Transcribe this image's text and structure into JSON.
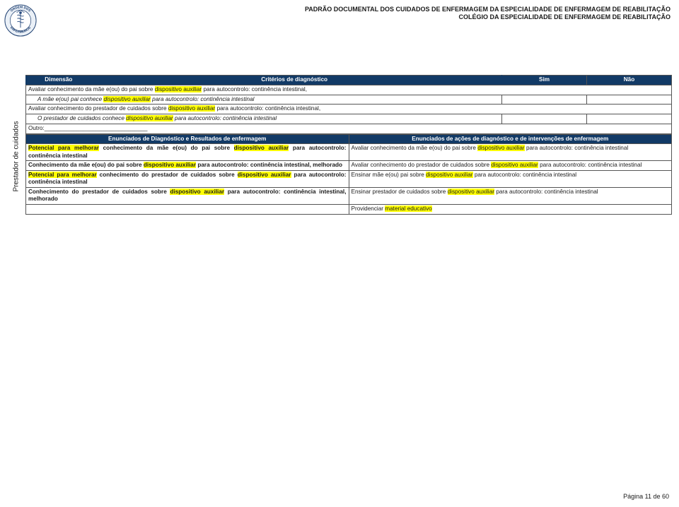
{
  "header": {
    "line1": "PADRÃO DOCUMENTAL DOS CUIDADOS DE ENFERMAGEM DA ESPECIALIDADE DE ENFERMAGEM DE REABILITAÇÃO",
    "line2": "COLÉGIO DA ESPECIALIDADE DE ENFERMAGEM DE REABILITAÇÃO"
  },
  "logo": {
    "ring_text_top": "ORDEM DOS",
    "ring_text_bottom": "ENFERMEIROS",
    "ring_color": "#1a3c6e",
    "outer_fill": "#eaf0f7",
    "caduceus_color": "#2a4d80"
  },
  "dimHeader": {
    "dim": "Dimensão",
    "criteria": "Critérios de diagnóstico",
    "sim": "Sim",
    "nao": "Não"
  },
  "dimLabel": "Prestador de cuidados",
  "criteriaRows": [
    {
      "main_pre": "Avaliar conhecimento da mãe e(ou) do pai sobre ",
      "main_hl": "dispositivo auxiliar",
      "main_post": " para autocontrolo: continência intestinal,",
      "indent_pre": "A mãe e(ou) pai conhece ",
      "indent_hl": "dispositivo auxiliar",
      "indent_post": " para autocontrolo: continência intestinal"
    },
    {
      "main_pre": "Avaliar conhecimento do prestador de cuidados sobre ",
      "main_hl": "dispositivo auxiliar",
      "main_post": " para autocontrolo: continência intestinal,",
      "indent_pre": "O prestador de cuidados conhece ",
      "indent_hl": "dispositivo auxiliar",
      "indent_post": " para autocontrolo: continência intestinal"
    }
  ],
  "outroLabel": "Outro:",
  "subHeaders": {
    "left": "Enunciados de Diagnóstico e Resultados de enfermagem",
    "right": "Enunciados de ações de diagnóstico e de intervenções de enfermagem"
  },
  "body": {
    "left": [
      {
        "segs": [
          {
            "t": "Potencial para melhorar",
            "hl": true,
            "b": true
          },
          {
            "t": " conhecimento da mãe e(ou) do pai sobre ",
            "b": true
          },
          {
            "t": "dispositivo auxiliar",
            "hl": true,
            "b": true
          },
          {
            "t": " para autocontrolo: continência intestinal",
            "b": true
          }
        ]
      },
      {
        "segs": [
          {
            "t": "Conhecimento da mãe e(ou) do pai sobre ",
            "b": true
          },
          {
            "t": "dispositivo auxiliar",
            "hl": true,
            "b": true
          },
          {
            "t": " para autocontrolo: continência intestinal, melhorado",
            "b": true
          }
        ]
      },
      {
        "segs": [
          {
            "t": "Potencial para melhorar",
            "hl": true,
            "b": true
          },
          {
            "t": " conhecimento do prestador de cuidados sobre ",
            "b": true
          },
          {
            "t": "dispositivo auxiliar",
            "hl": true,
            "b": true
          },
          {
            "t": " para autocontrolo: continência intestinal",
            "b": true
          }
        ]
      },
      {
        "segs": [
          {
            "t": "Conhecimento do prestador de cuidados sobre ",
            "b": true
          },
          {
            "t": "dispositivo auxiliar",
            "hl": true,
            "b": true
          },
          {
            "t": " para autocontrolo: continência intestinal, melhorado",
            "b": true
          }
        ]
      }
    ],
    "right": [
      {
        "segs": [
          {
            "t": "Avaliar conhecimento da mãe e(ou) do pai sobre "
          },
          {
            "t": "dispositivo auxiliar",
            "hl": true
          },
          {
            "t": " para autocontrolo: continência intestinal"
          }
        ]
      },
      {
        "segs": [
          {
            "t": "Avaliar conhecimento do prestador de cuidados sobre "
          },
          {
            "t": "dispositivo auxiliar",
            "hl": true
          },
          {
            "t": " para autocontrolo: continência intestinal"
          }
        ]
      },
      {
        "segs": [
          {
            "t": "Ensinar mãe e(ou) pai sobre "
          },
          {
            "t": "dispositivo auxiliar",
            "hl": true
          },
          {
            "t": " para autocontrolo: continência intestinal"
          }
        ]
      },
      {
        "segs": [
          {
            "t": "Ensinar prestador de cuidados sobre "
          },
          {
            "t": "dispositivo auxiliar",
            "hl": true
          },
          {
            "t": " para autocontrolo: continência intestinal"
          }
        ]
      },
      {
        "segs": [
          {
            "t": "Providenciar "
          },
          {
            "t": "material educativo",
            "hl": true
          }
        ]
      }
    ]
  },
  "footer": "Página 11 de 60"
}
